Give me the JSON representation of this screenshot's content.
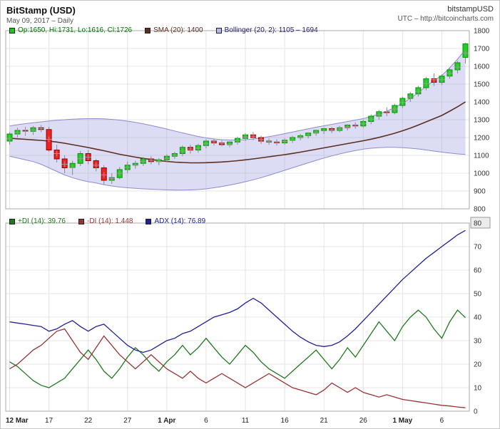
{
  "header": {
    "title": "BitStamp (USD)",
    "subtitle": "May 09, 2017 – Daily",
    "symbol": "bitstampUSD",
    "timezone_url": "UTC – http://bitcoincharts.com"
  },
  "chart_data": [
    {
      "type": "candlestick",
      "title": "BitStamp (USD)",
      "ylim": [
        800,
        1800
      ],
      "y_ticks": [
        800,
        900,
        1000,
        1100,
        1200,
        1300,
        1400,
        1500,
        1600,
        1700,
        1800
      ],
      "x_tick_indices": [
        0,
        5,
        10,
        15,
        20,
        25,
        30,
        35,
        40,
        45,
        50,
        55
      ],
      "legend": [
        {
          "label": "Op:1650, Hi:1731, Lo:1616, Cl:1726",
          "swatch": "#19c819",
          "color": "#007700"
        },
        {
          "label": "SMA (20): 1400",
          "swatch": "#5c2e1e",
          "color": "#5c2e1e"
        },
        {
          "label": "Bollinger (20, 2): 1105 – 1694",
          "swatch": "#b4b6ea",
          "color": "#222266"
        }
      ],
      "candles": [
        [
          1180,
          1230,
          1160,
          1220
        ],
        [
          1220,
          1255,
          1200,
          1240
        ],
        [
          1240,
          1260,
          1210,
          1235
        ],
        [
          1235,
          1265,
          1215,
          1255
        ],
        [
          1255,
          1270,
          1230,
          1245
        ],
        [
          1245,
          1260,
          1120,
          1130
        ],
        [
          1130,
          1160,
          1060,
          1080
        ],
        [
          1080,
          1100,
          1000,
          1030
        ],
        [
          1030,
          1070,
          990,
          1055
        ],
        [
          1055,
          1125,
          1040,
          1110
        ],
        [
          1110,
          1130,
          1050,
          1070
        ],
        [
          1070,
          1080,
          1010,
          1030
        ],
        [
          1030,
          1045,
          935,
          960
        ],
        [
          960,
          1000,
          940,
          975
        ],
        [
          975,
          1035,
          965,
          1020
        ],
        [
          1020,
          1065,
          1000,
          1045
        ],
        [
          1045,
          1070,
          1025,
          1055
        ],
        [
          1055,
          1090,
          1040,
          1080
        ],
        [
          1080,
          1095,
          1050,
          1065
        ],
        [
          1065,
          1085,
          1045,
          1075
        ],
        [
          1075,
          1105,
          1060,
          1095
        ],
        [
          1095,
          1120,
          1080,
          1110
        ],
        [
          1110,
          1155,
          1095,
          1145
        ],
        [
          1145,
          1160,
          1110,
          1130
        ],
        [
          1130,
          1165,
          1115,
          1155
        ],
        [
          1155,
          1190,
          1140,
          1180
        ],
        [
          1180,
          1195,
          1155,
          1170
        ],
        [
          1170,
          1185,
          1150,
          1160
        ],
        [
          1160,
          1180,
          1145,
          1175
        ],
        [
          1175,
          1205,
          1160,
          1195
        ],
        [
          1195,
          1225,
          1180,
          1215
        ],
        [
          1215,
          1230,
          1185,
          1200
        ],
        [
          1200,
          1210,
          1165,
          1180
        ],
        [
          1180,
          1195,
          1160,
          1175
        ],
        [
          1175,
          1190,
          1155,
          1170
        ],
        [
          1170,
          1195,
          1160,
          1185
        ],
        [
          1185,
          1210,
          1170,
          1200
        ],
        [
          1200,
          1220,
          1185,
          1210
        ],
        [
          1210,
          1230,
          1195,
          1225
        ],
        [
          1225,
          1245,
          1210,
          1240
        ],
        [
          1240,
          1255,
          1220,
          1250
        ],
        [
          1250,
          1260,
          1225,
          1240
        ],
        [
          1240,
          1265,
          1230,
          1255
        ],
        [
          1255,
          1275,
          1240,
          1270
        ],
        [
          1270,
          1285,
          1250,
          1265
        ],
        [
          1265,
          1300,
          1255,
          1290
        ],
        [
          1290,
          1330,
          1275,
          1320
        ],
        [
          1320,
          1355,
          1300,
          1345
        ],
        [
          1345,
          1370,
          1320,
          1340
        ],
        [
          1340,
          1390,
          1330,
          1380
        ],
        [
          1380,
          1430,
          1365,
          1420
        ],
        [
          1420,
          1455,
          1400,
          1445
        ],
        [
          1445,
          1490,
          1430,
          1480
        ],
        [
          1480,
          1540,
          1465,
          1530
        ],
        [
          1530,
          1560,
          1490,
          1510
        ],
        [
          1510,
          1555,
          1495,
          1545
        ],
        [
          1545,
          1590,
          1530,
          1580
        ],
        [
          1580,
          1630,
          1560,
          1620
        ],
        [
          1650,
          1731,
          1616,
          1726
        ]
      ],
      "sma20": [
        1196,
        1193,
        1190,
        1187,
        1184,
        1180,
        1175,
        1168,
        1160,
        1152,
        1144,
        1135,
        1126,
        1116,
        1106,
        1098,
        1090,
        1083,
        1077,
        1071,
        1066,
        1062,
        1060,
        1058,
        1058,
        1059,
        1061,
        1063,
        1066,
        1070,
        1075,
        1080,
        1086,
        1092,
        1098,
        1104,
        1111,
        1118,
        1126,
        1134,
        1142,
        1150,
        1158,
        1166,
        1174,
        1182,
        1191,
        1201,
        1212,
        1224,
        1238,
        1253,
        1270,
        1288,
        1306,
        1324,
        1348,
        1373,
        1400
      ],
      "bollinger_upper": [
        1265,
        1272,
        1278,
        1283,
        1288,
        1293,
        1297,
        1300,
        1303,
        1305,
        1306,
        1306,
        1305,
        1302,
        1298,
        1292,
        1285,
        1277,
        1268,
        1258,
        1248,
        1237,
        1226,
        1216,
        1206,
        1198,
        1192,
        1188,
        1186,
        1186,
        1188,
        1192,
        1198,
        1205,
        1213,
        1222,
        1231,
        1240,
        1249,
        1258,
        1266,
        1274,
        1282,
        1290,
        1298,
        1307,
        1318,
        1332,
        1348,
        1368,
        1392,
        1420,
        1452,
        1488,
        1520,
        1548,
        1592,
        1640,
        1694
      ],
      "bollinger_lower": [
        1095,
        1085,
        1075,
        1065,
        1050,
        1030,
        1010,
        990,
        975,
        962,
        952,
        945,
        935,
        928,
        922,
        918,
        915,
        912,
        910,
        908,
        906,
        905,
        905,
        906,
        908,
        912,
        918,
        925,
        933,
        942,
        952,
        963,
        975,
        988,
        1002,
        1016,
        1030,
        1044,
        1058,
        1072,
        1085,
        1097,
        1108,
        1118,
        1127,
        1135,
        1140,
        1143,
        1145,
        1145,
        1143,
        1140,
        1136,
        1130,
        1124,
        1118,
        1113,
        1108,
        1105
      ],
      "colors": {
        "up": "#009900",
        "up_fill": "#22cc22",
        "down": "#990000",
        "down_fill": "#ee2222",
        "wick": "#8a8a8a",
        "marker": "#9a9a9a",
        "sma": "#5c2e1e",
        "boll_line": "#8c8ccf",
        "boll_fill": "rgba(145,148,220,0.32)",
        "grid": "#e4e4e4",
        "axis_text": "#333333",
        "plot_border": "#aaaaaa"
      }
    },
    {
      "type": "line",
      "title": "+DI / -DI / ADX (14)",
      "ylim": [
        0,
        80
      ],
      "y_ticks": [
        0,
        10,
        20,
        30,
        40,
        50,
        60,
        70,
        80
      ],
      "boxed_y_tick": 80,
      "legend": [
        {
          "label": "+DI (14): 39.76",
          "swatch": "#1f7a1f",
          "color": "#1f7a1f"
        },
        {
          "label": "-DI (14): 1.448",
          "swatch": "#993333",
          "color": "#993333"
        },
        {
          "label": "ADX (14): 76.89",
          "swatch": "#202099",
          "color": "#202099"
        }
      ],
      "x_ticks": [
        {
          "label": "12 Mar",
          "index": 0,
          "bold": true
        },
        {
          "label": "17",
          "index": 5,
          "bold": false
        },
        {
          "label": "22",
          "index": 10,
          "bold": false
        },
        {
          "label": "27",
          "index": 15,
          "bold": false
        },
        {
          "label": "1 Apr",
          "index": 20,
          "bold": true
        },
        {
          "label": "6",
          "index": 25,
          "bold": false
        },
        {
          "label": "11",
          "index": 30,
          "bold": false
        },
        {
          "label": "16",
          "index": 35,
          "bold": false
        },
        {
          "label": "21",
          "index": 40,
          "bold": false
        },
        {
          "label": "26",
          "index": 45,
          "bold": false
        },
        {
          "label": "1 May",
          "index": 50,
          "bold": true
        },
        {
          "label": "6",
          "index": 55,
          "bold": false
        }
      ],
      "series": [
        {
          "name": "+DI (14)",
          "color": "#1f7a1f",
          "values": [
            21,
            19,
            16,
            13,
            11,
            10,
            12,
            14,
            18,
            22,
            26,
            22,
            17,
            14,
            18,
            23,
            27,
            24,
            20,
            17,
            21,
            24,
            28,
            24,
            27,
            31,
            27,
            23,
            20,
            24,
            28,
            25,
            21,
            18,
            16,
            14,
            17,
            20,
            23,
            26,
            22,
            18,
            22,
            27,
            23,
            28,
            33,
            38,
            34,
            30,
            36,
            40,
            43,
            40,
            35,
            31,
            38,
            43,
            39.76
          ]
        },
        {
          "name": "-DI (14)",
          "color": "#993333",
          "values": [
            18,
            20,
            23,
            26,
            28,
            31,
            34,
            35,
            30,
            25,
            22,
            27,
            32,
            28,
            24,
            21,
            18,
            21,
            24,
            21,
            18,
            16,
            14,
            17,
            14,
            12,
            14,
            16,
            14,
            12,
            10,
            12,
            14,
            16,
            14,
            12,
            10,
            9,
            8,
            7,
            9,
            12,
            10,
            8,
            10,
            8,
            7,
            6,
            7,
            6,
            5,
            4.5,
            4,
            3.5,
            3,
            2.5,
            2.2,
            1.8,
            1.448
          ]
        },
        {
          "name": "ADX (14)",
          "color": "#202099",
          "values": [
            38,
            37.5,
            37,
            36.5,
            36,
            34,
            35,
            37,
            38.5,
            36,
            34,
            36,
            37,
            34,
            31,
            28,
            26,
            25,
            26,
            28,
            30,
            31,
            33,
            34,
            36,
            38,
            40,
            41,
            42,
            43.5,
            46,
            48,
            46,
            43,
            40,
            37,
            34,
            31.5,
            29.5,
            28,
            27.5,
            28,
            29.5,
            32,
            35,
            38.5,
            42,
            45.5,
            49,
            52.5,
            56,
            59,
            62,
            65,
            67.5,
            70,
            72.5,
            75,
            76.89
          ]
        }
      ],
      "colors": {
        "grid": "#e4e4e4",
        "axis_text": "#333333",
        "plot_border": "#aaaaaa",
        "boxed_tick_fill": "#ececec",
        "boxed_tick_border": "#999999"
      }
    }
  ]
}
